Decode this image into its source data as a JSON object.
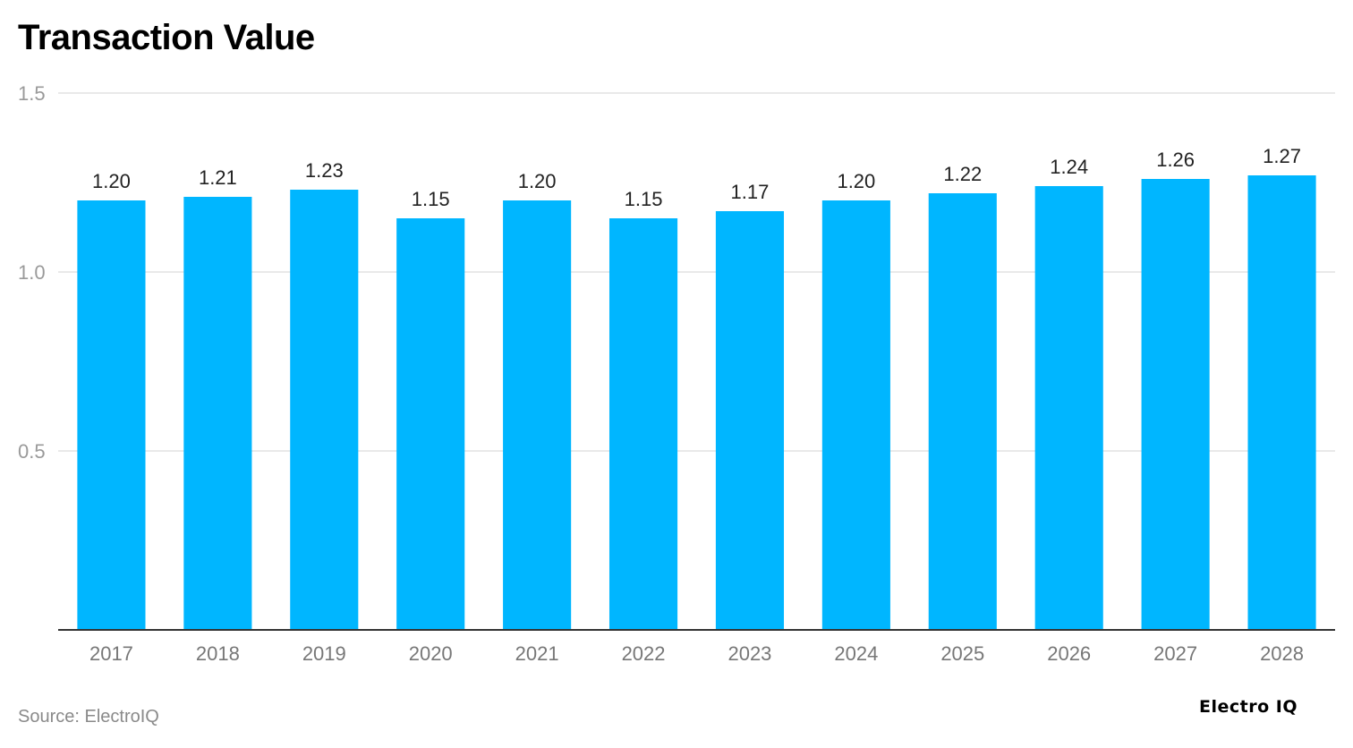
{
  "chart_data": {
    "type": "bar",
    "title": "Transaction Value",
    "categories": [
      "2017",
      "2018",
      "2019",
      "2020",
      "2021",
      "2022",
      "2023",
      "2024",
      "2025",
      "2026",
      "2027",
      "2028"
    ],
    "values": [
      1.2,
      1.21,
      1.23,
      1.15,
      1.2,
      1.15,
      1.17,
      1.2,
      1.22,
      1.24,
      1.26,
      1.27
    ],
    "value_labels": [
      "1.20",
      "1.21",
      "1.23",
      "1.15",
      "1.20",
      "1.15",
      "1.17",
      "1.20",
      "1.22",
      "1.24",
      "1.26",
      "1.27"
    ],
    "yticks": [
      0.5,
      1.0,
      1.5
    ],
    "ytick_labels": [
      "0.5",
      "1.0",
      "1.5"
    ],
    "ylim": [
      0,
      1.5
    ],
    "xlabel": "",
    "ylabel": "",
    "grid": true,
    "bar_color": "#00B6FF"
  },
  "source_text": "Source: ElectroIQ",
  "logo_text": "Electro IQ"
}
